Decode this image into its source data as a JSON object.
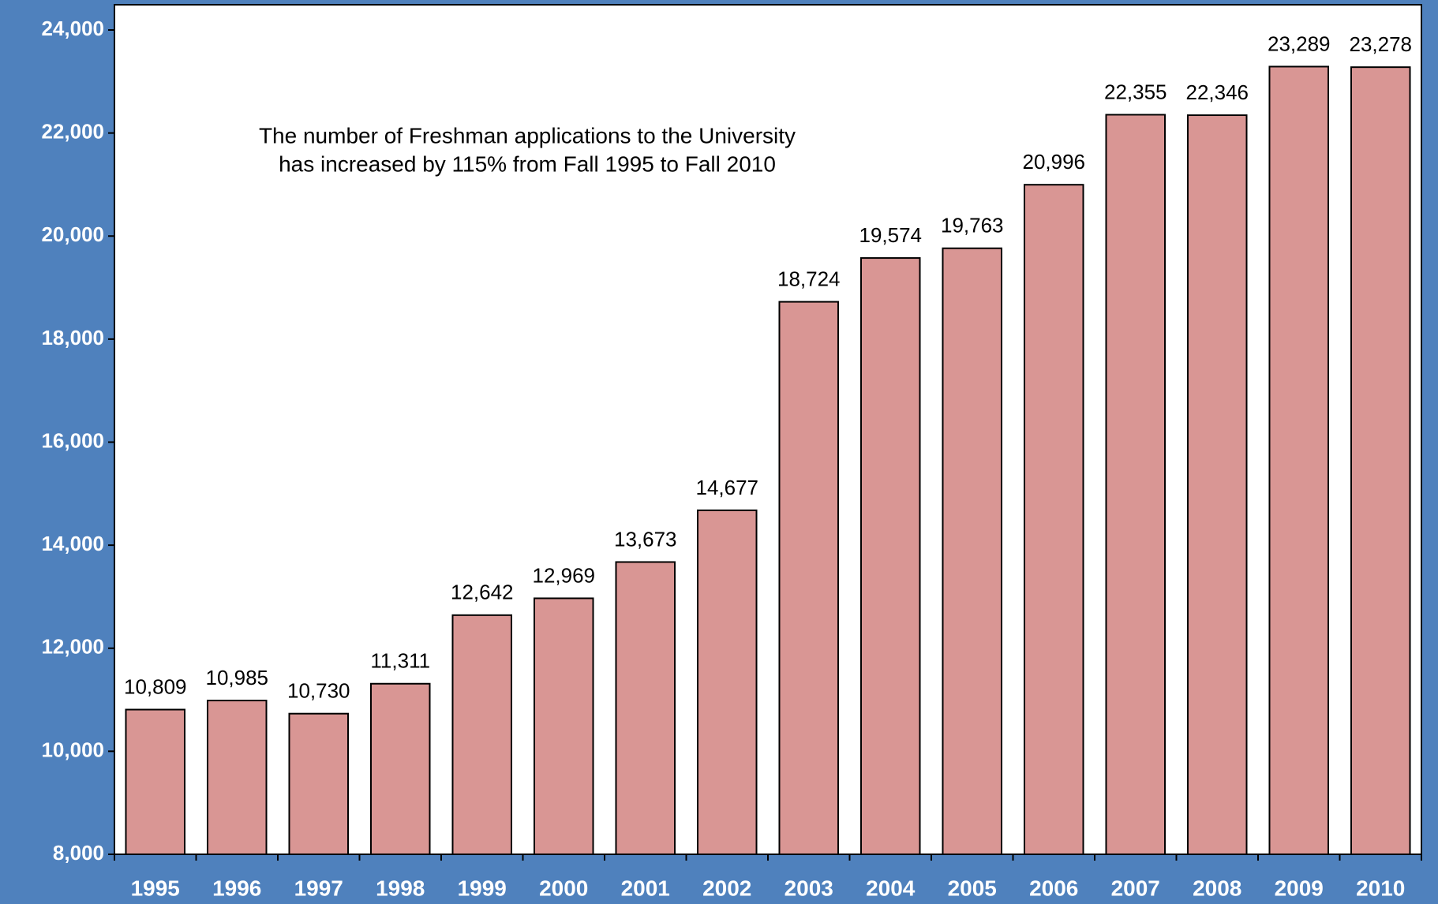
{
  "chart_data": {
    "type": "bar",
    "annotation": [
      "The number of Freshman applications to the University",
      "has increased by 115% from Fall 1995 to Fall 2010"
    ],
    "categories": [
      "1995",
      "1996",
      "1997",
      "1998",
      "1999",
      "2000",
      "2001",
      "2002",
      "2003",
      "2004",
      "2005",
      "2006",
      "2007",
      "2008",
      "2009",
      "2010"
    ],
    "values": [
      10809,
      10985,
      10730,
      11311,
      12642,
      12969,
      13673,
      14677,
      18724,
      19574,
      19763,
      20996,
      22355,
      22346,
      23289,
      23278
    ],
    "value_labels": [
      "10,809",
      "10,985",
      "10,730",
      "11,311",
      "12,642",
      "12,969",
      "13,673",
      "14,677",
      "18,724",
      "19,574",
      "19,763",
      "20,996",
      "22,355",
      "22,346",
      "23,289",
      "23,278"
    ],
    "color": "#d99694",
    "ylim": [
      8000,
      24000
    ],
    "yticks": [
      {
        "value": 8000,
        "label": "8,000"
      },
      {
        "value": 10000,
        "label": "10,000"
      },
      {
        "value": 12000,
        "label": "12,000"
      },
      {
        "value": 14000,
        "label": "14,000"
      },
      {
        "value": 16000,
        "label": "16,000"
      },
      {
        "value": 18000,
        "label": "18,000"
      },
      {
        "value": 20000,
        "label": "20,000"
      },
      {
        "value": 22000,
        "label": "22,000"
      },
      {
        "value": 24000,
        "label": "24,000"
      }
    ],
    "grid": false
  }
}
